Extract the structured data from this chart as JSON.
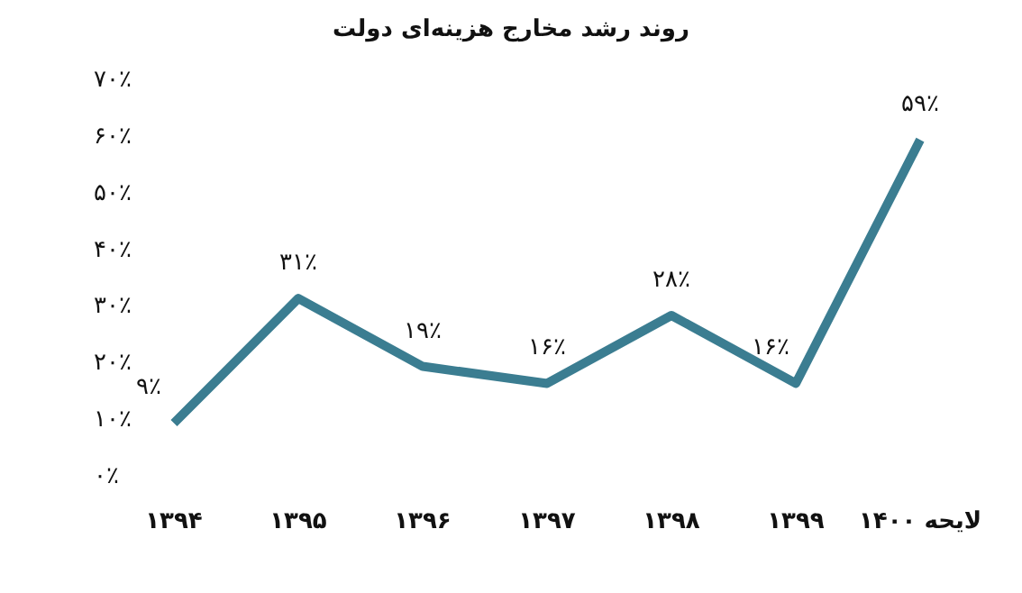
{
  "chart_data": {
    "type": "line",
    "title": "روند رشد مخارج هزینه‌ای دولت",
    "categories": [
      "۱۳۹۴",
      "۱۳۹۵",
      "۱۳۹۶",
      "۱۳۹۷",
      "۱۳۹۸",
      "۱۳۹۹",
      "لایحه ۱۴۰۰"
    ],
    "series": [
      {
        "color": "#3b7d91",
        "values": [
          9,
          31,
          19,
          16,
          28,
          16,
          59
        ],
        "value_labels": [
          "۹٪",
          "۳۱٪",
          "۱۹٪",
          "۱۶٪",
          "۲۸٪",
          "۱۶٪",
          "۵۹٪"
        ]
      }
    ],
    "ylim": [
      0,
      70
    ],
    "yticks": [
      {
        "value": 0,
        "label": "۰٪"
      },
      {
        "value": 10,
        "label": "۱۰٪"
      },
      {
        "value": 20,
        "label": "۲۰٪"
      },
      {
        "value": 30,
        "label": "۳۰٪"
      },
      {
        "value": 40,
        "label": "۴۰٪"
      },
      {
        "value": 50,
        "label": "۵۰٪"
      },
      {
        "value": 60,
        "label": "۶۰٪"
      },
      {
        "value": 70,
        "label": "۷۰٪"
      }
    ],
    "grid": false,
    "marker": "none",
    "line_style": "solid"
  }
}
